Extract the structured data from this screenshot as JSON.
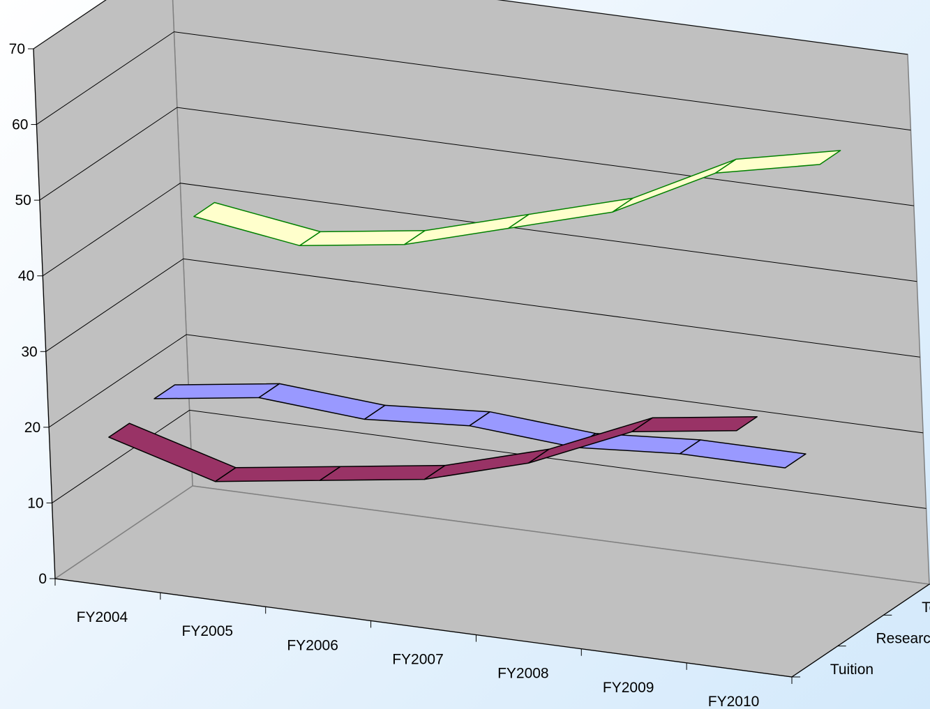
{
  "chart_data": {
    "type": "line",
    "variant": "3d-ribbon",
    "title": "",
    "xlabel": "",
    "ylabel": "",
    "categories": [
      "FY2004",
      "FY2005",
      "FY2006",
      "FY2007",
      "FY2008",
      "FY2009",
      "FY2010"
    ],
    "ylim": [
      0,
      70
    ],
    "yticks": [
      "0",
      "10",
      "20",
      "30",
      "40",
      "50",
      "60",
      "70"
    ],
    "grid": true,
    "depth_labels": [
      "Tuition",
      "Research",
      "Total"
    ],
    "series": [
      {
        "name": "Tuition",
        "color": "#993366",
        "values": [
          19,
          15,
          17,
          19,
          23,
          29,
          31
        ]
      },
      {
        "name": "Research",
        "color": "#9999ff",
        "values": [
          20,
          22,
          21,
          22,
          21,
          22,
          22
        ]
      },
      {
        "name": "Total",
        "color": "#ffffcc",
        "stroke": "#008000",
        "values": [
          40,
          38,
          40,
          44,
          48,
          55,
          58
        ]
      }
    ]
  }
}
